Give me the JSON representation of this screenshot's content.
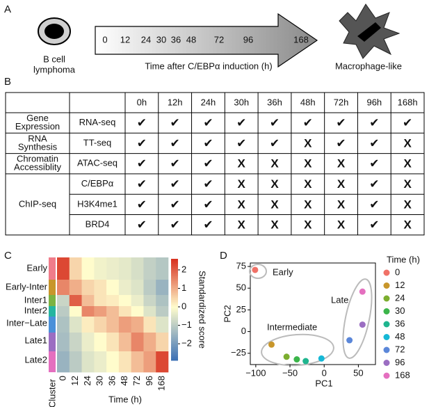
{
  "panel_a": {
    "label": "A",
    "start_lines": [
      "B cell",
      "lymphoma"
    ],
    "times": [
      "0",
      "12",
      "24",
      "30",
      "36",
      "48",
      "72",
      "96",
      "168"
    ],
    "axis_label": "Time after C/EBPα induction (h)",
    "end_label": "Macrophage-like"
  },
  "panel_b": {
    "label": "B",
    "table": {
      "header": [
        "0h",
        "12h",
        "24h",
        "30h",
        "36h",
        "48h",
        "72h",
        "96h",
        "168h"
      ],
      "groups": [
        {
          "label_lines": [
            "Gene",
            "Expression"
          ],
          "rows": [
            {
              "assay": "RNA-seq",
              "cells": [
                "✔",
                "✔",
                "✔",
                "✔",
                "✔",
                "✔",
                "✔",
                "✔",
                "✔"
              ]
            }
          ]
        },
        {
          "label_lines": [
            "RNA",
            "Synthesis"
          ],
          "rows": [
            {
              "assay": "TT-seq",
              "cells": [
                "✔",
                "✔",
                "✔",
                "✔",
                "✔",
                "X",
                "✔",
                "✔",
                "X"
              ]
            }
          ]
        },
        {
          "label_lines": [
            "Chromatin",
            "Accessiblity"
          ],
          "rows": [
            {
              "assay": "ATAC-seq",
              "cells": [
                "✔",
                "✔",
                "✔",
                "X",
                "X",
                "X",
                "X",
                "✔",
                "X"
              ]
            }
          ]
        },
        {
          "label_lines": [
            "ChIP-seq"
          ],
          "rows": [
            {
              "assay": "C/EBPα",
              "cells": [
                "✔",
                "✔",
                "✔",
                "X",
                "X",
                "X",
                "X",
                "✔",
                "X"
              ]
            },
            {
              "assay": "H3K4me1",
              "cells": [
                "✔",
                "✔",
                "✔",
                "X",
                "X",
                "X",
                "X",
                "✔",
                "X"
              ]
            },
            {
              "assay": "BRD4",
              "cells": [
                "✔",
                "✔",
                "✔",
                "X",
                "X",
                "X",
                "X",
                "✔",
                "X"
              ]
            }
          ]
        }
      ]
    }
  },
  "panel_c": {
    "label": "C",
    "type": "heatmap",
    "clusters": [
      "Early",
      "Early-Inter",
      "Inter1",
      "Inter2",
      "Inter−Late",
      "Late1",
      "Late2"
    ],
    "cluster_colors": [
      "#f07c8a",
      "#c8962b",
      "#7cb342",
      "#26b5a0",
      "#4a90d9",
      "#9b6ec2",
      "#e46fbf"
    ],
    "times": [
      "0",
      "12",
      "24",
      "30",
      "36",
      "48",
      "72",
      "96",
      "168"
    ],
    "matrix": [
      [
        2.3,
        0.5,
        0,
        -0.2,
        -0.3,
        -0.4,
        -0.6,
        -0.9,
        -1.1
      ],
      [
        1.5,
        1.0,
        0.5,
        0.3,
        0,
        -0.3,
        -0.5,
        -1.0,
        -1.5
      ],
      [
        -0.8,
        2.0,
        0.8,
        0.3,
        0.2,
        0,
        -0.3,
        -0.8,
        -1.2
      ],
      [
        -1.0,
        0,
        1.5,
        1.2,
        0.8,
        0.3,
        0,
        -0.5,
        -1.0
      ],
      [
        -1.2,
        -0.5,
        0.2,
        0.5,
        0.8,
        1.2,
        1.0,
        0.3,
        -0.5
      ],
      [
        -1.3,
        -0.8,
        -0.3,
        0,
        0.3,
        0.8,
        1.5,
        1.0,
        0.5
      ],
      [
        -1.5,
        -1.0,
        -0.5,
        -0.3,
        0,
        0.3,
        0.8,
        1.2,
        2.3
      ]
    ],
    "colorbar": {
      "lim": [
        -2.9,
        2.6
      ],
      "ticks": [
        2,
        1,
        0,
        {
          "value": -1,
          "label": "−1"
        },
        {
          "value": -2,
          "label": "−2"
        }
      ],
      "colors": [
        "#3a6fb5",
        "#fffccc",
        "#d7301f"
      ],
      "title": "Standardized score"
    },
    "y_label": "Cluster",
    "x_label": "Time (h)"
  },
  "panel_d": {
    "label": "D",
    "type": "scatter",
    "x": [
      -101,
      -77,
      -55,
      -40,
      -27,
      -4,
      37,
      56,
      56
    ],
    "y": [
      71,
      -15,
      -29,
      -32,
      -34,
      -31,
      -10,
      8,
      46
    ],
    "names": [
      "0",
      "12",
      "24",
      "30",
      "36",
      "48",
      "72",
      "96",
      "168"
    ],
    "colors": [
      "#f07167",
      "#c8962b",
      "#7cae2f",
      "#3bb54a",
      "#1fb58f",
      "#16b8d6",
      "#5b87d9",
      "#9b6ec2",
      "#e46fbf"
    ],
    "xlim": [
      -108,
      75
    ],
    "ylim": [
      -38,
      79
    ],
    "xticks": [
      {
        "value": -100,
        "label": "−100"
      },
      {
        "value": -50,
        "label": "−50"
      },
      0,
      50
    ],
    "yticks": [
      75,
      50,
      25,
      0,
      {
        "value": -25,
        "label": "−25"
      }
    ],
    "x_label": "PC1",
    "y_label": "PC2",
    "legend_title": "Time (h)",
    "annotations": [
      "Early",
      "Late",
      "Intermediate"
    ]
  }
}
